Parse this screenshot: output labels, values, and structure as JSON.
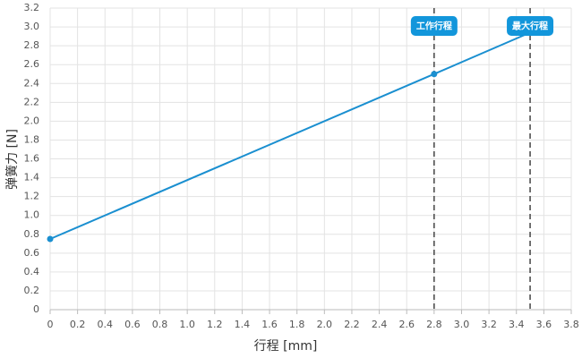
{
  "chart_data": {
    "type": "line",
    "x_label": "行程 [mm]",
    "y_label": "弹簧力 [N]",
    "x": [
      0,
      2.8,
      3.5
    ],
    "series": [
      {
        "color": "#1a8fd0",
        "values": [
          0.75,
          2.5,
          2.94
        ]
      }
    ],
    "xlim": [
      0,
      3.8
    ],
    "xticks": [
      0,
      0.2,
      0.4,
      0.6,
      0.8,
      {
        "value": 1,
        "label": "1.0"
      },
      1.2,
      1.4,
      1.6,
      1.8,
      {
        "value": 2,
        "label": "2.0"
      },
      2.2,
      2.4,
      2.6,
      2.8,
      {
        "value": 3,
        "label": "3.0"
      },
      3.2,
      3.4,
      3.6,
      3.8
    ],
    "ylim": [
      0,
      3.2
    ],
    "yticks": [
      0,
      0.2,
      0.4,
      0.6,
      0.8,
      {
        "value": 1,
        "label": "1.0"
      },
      1.2,
      1.4,
      1.6,
      1.8,
      {
        "value": 2,
        "label": "2.0"
      },
      2.2,
      2.4,
      2.6,
      2.8,
      {
        "value": 3,
        "label": "3.0"
      },
      3.2
    ],
    "grid": true,
    "annotations": [
      {
        "x": 2.8,
        "label": "工作行程"
      },
      {
        "x": 3.5,
        "label": "最大行程"
      }
    ],
    "annotation_color": "#1296db"
  }
}
